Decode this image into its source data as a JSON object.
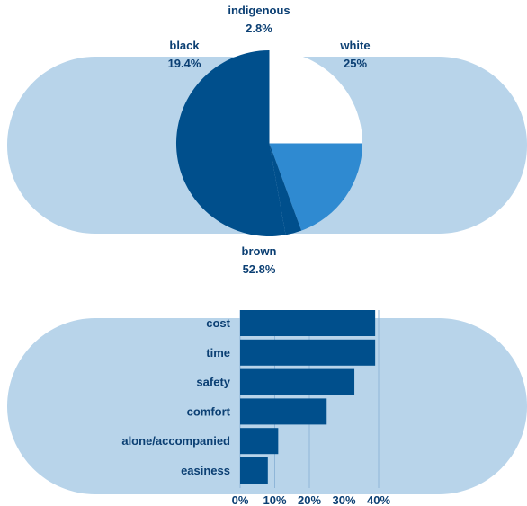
{
  "colors": {
    "pill_background": "#b8d4ea",
    "dark_blue": "#004f8c",
    "mid_blue": "#2f8ad1",
    "white": "#ffffff",
    "label_text": "#0b3f73",
    "grid_line": "#8fb6d8"
  },
  "chart_data": [
    {
      "type": "pie",
      "categories": [
        "white",
        "black",
        "indigenous",
        "brown"
      ],
      "values": [
        25,
        19.4,
        2.8,
        52.8
      ],
      "value_labels": [
        "25%",
        "19.4%",
        "2.8%",
        "52.8%"
      ],
      "slice_colors": [
        "#ffffff",
        "#2f8ad1",
        "#004f8c",
        "#004f8c"
      ]
    },
    {
      "type": "bar",
      "orientation": "horizontal",
      "categories": [
        "cost",
        "time",
        "safety",
        "comfort",
        "alone/accompanied",
        "easiness"
      ],
      "values": [
        39,
        39,
        33,
        25,
        11,
        8
      ],
      "xlim": [
        0,
        40
      ],
      "xticks": [
        0,
        10,
        20,
        30,
        40
      ],
      "xtick_labels": [
        "0%",
        "10%",
        "20%",
        "30%",
        "40%"
      ],
      "grid": true
    }
  ]
}
